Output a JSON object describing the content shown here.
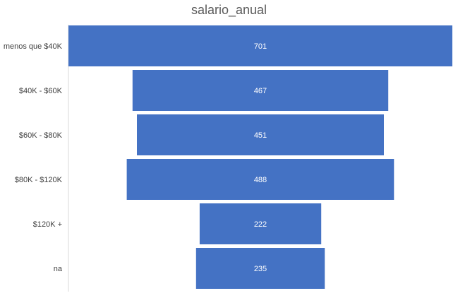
{
  "chart_data": {
    "type": "bar",
    "variant": "funnel",
    "title": "salario_anual",
    "categories": [
      "menos que $40K",
      "$40K - $60K",
      "$60K - $80K",
      "$80K - $120K",
      "$120K +",
      "na"
    ],
    "values": [
      701,
      467,
      451,
      488,
      222,
      235
    ],
    "colors": {
      "bar": "#4472C4",
      "label": "#FFFFFF",
      "axis": "#D9D9D9",
      "text": "#595959"
    },
    "data_labels": true,
    "legend": "none"
  }
}
